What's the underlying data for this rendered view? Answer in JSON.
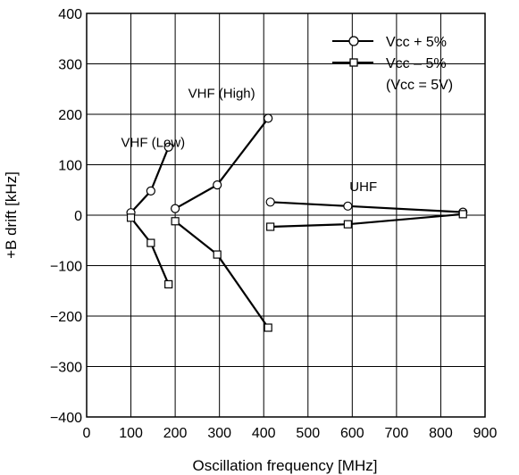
{
  "chart_data": {
    "type": "line",
    "title": "",
    "xlabel": "Oscillation frequency [MHz]",
    "ylabel": "+B drift [kHz]",
    "xlim": [
      0,
      900
    ],
    "ylim": [
      -400,
      400
    ],
    "xticks": [
      0,
      100,
      200,
      300,
      400,
      500,
      600,
      700,
      800,
      900
    ],
    "yticks": [
      400,
      300,
      200,
      100,
      0,
      -100,
      -200,
      -300,
      -400
    ],
    "grid": true,
    "legend_placement": "top-right",
    "legend": {
      "entries": [
        {
          "label": "Vcc + 5%",
          "marker": "circle"
        },
        {
          "label": "Vcc – 5%",
          "marker": "square"
        }
      ],
      "note": "(Vcc = 5V)"
    },
    "annotations": [
      {
        "text": "VHF (Low)",
        "x": 150,
        "y": 135
      },
      {
        "text": "VHF (High)",
        "x": 305,
        "y": 233
      },
      {
        "text": "UHF",
        "x": 625,
        "y": 48
      }
    ],
    "series": [
      {
        "band": "VHF (Low)",
        "marker": "circle",
        "x": [
          100,
          145,
          185
        ],
        "y": [
          5,
          48,
          135
        ]
      },
      {
        "band": "VHF (Low)",
        "marker": "square",
        "x": [
          100,
          145,
          185
        ],
        "y": [
          -5,
          -55,
          -137
        ]
      },
      {
        "band": "VHF (High)",
        "marker": "circle",
        "x": [
          200,
          295,
          410
        ],
        "y": [
          13,
          60,
          192
        ]
      },
      {
        "band": "VHF (High)",
        "marker": "square",
        "x": [
          200,
          295,
          410
        ],
        "y": [
          -12,
          -78,
          -223
        ]
      },
      {
        "band": "UHF",
        "marker": "circle",
        "x": [
          415,
          590,
          850
        ],
        "y": [
          26,
          18,
          6
        ]
      },
      {
        "band": "UHF",
        "marker": "square",
        "x": [
          415,
          590,
          850
        ],
        "y": [
          -23,
          -18,
          2
        ]
      }
    ]
  }
}
